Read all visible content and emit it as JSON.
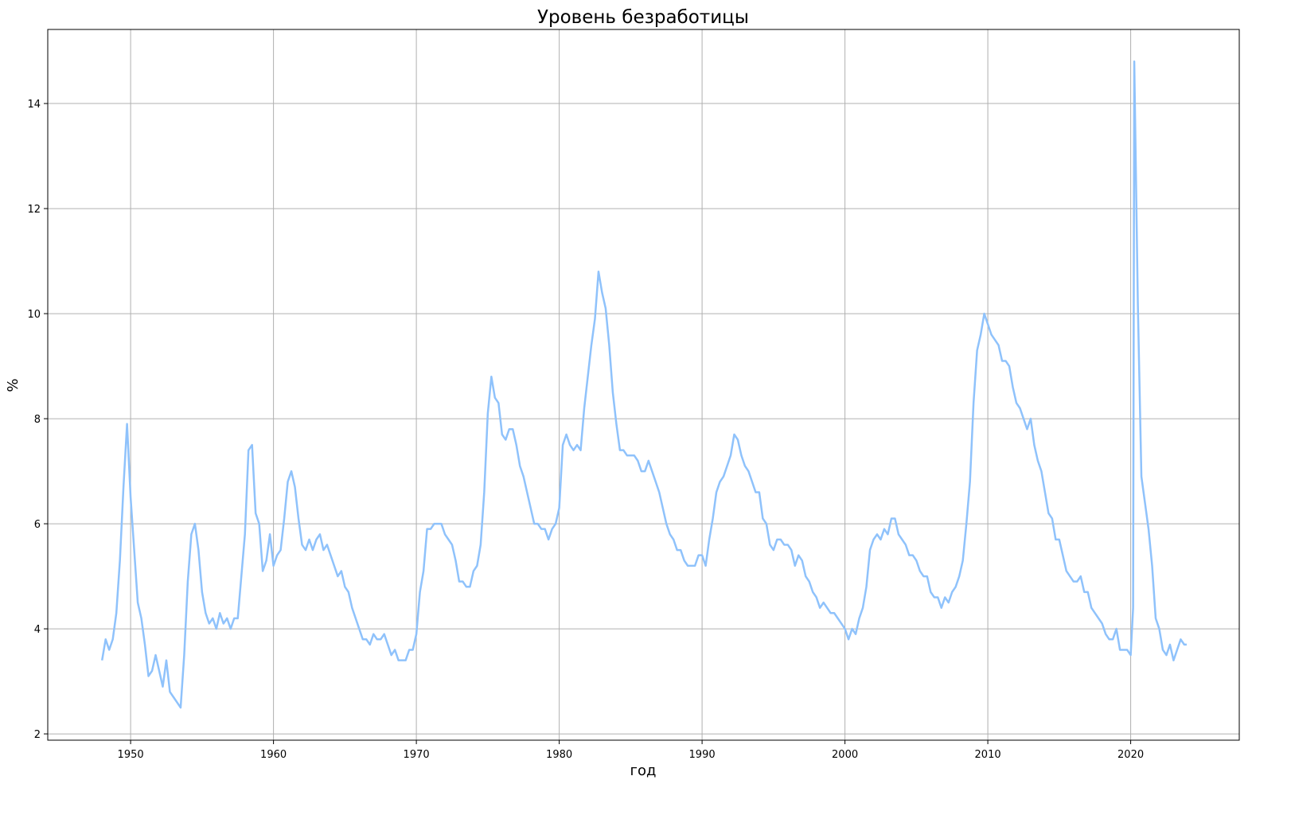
{
  "chart_data": {
    "type": "line",
    "title": "Уровень безработицы",
    "xlabel": "год",
    "ylabel": "%",
    "x": [
      1948,
      1948.25,
      1948.5,
      1948.75,
      1949,
      1949.25,
      1949.5,
      1949.75,
      1950,
      1950.25,
      1950.5,
      1950.75,
      1951,
      1951.25,
      1951.5,
      1951.75,
      1952,
      1952.25,
      1952.5,
      1952.75,
      1953,
      1953.25,
      1953.5,
      1953.75,
      1954,
      1954.25,
      1954.5,
      1954.75,
      1955,
      1955.25,
      1955.5,
      1955.75,
      1956,
      1956.25,
      1956.5,
      1956.75,
      1957,
      1957.25,
      1957.5,
      1957.75,
      1958,
      1958.25,
      1958.5,
      1958.75,
      1959,
      1959.25,
      1959.5,
      1959.75,
      1960,
      1960.25,
      1960.5,
      1960.75,
      1961,
      1961.25,
      1961.5,
      1961.75,
      1962,
      1962.25,
      1962.5,
      1962.75,
      1963,
      1963.25,
      1963.5,
      1963.75,
      1964,
      1964.25,
      1964.5,
      1964.75,
      1965,
      1965.25,
      1965.5,
      1965.75,
      1966,
      1966.25,
      1966.5,
      1966.75,
      1967,
      1967.25,
      1967.5,
      1967.75,
      1968,
      1968.25,
      1968.5,
      1968.75,
      1969,
      1969.25,
      1969.5,
      1969.75,
      1970,
      1970.25,
      1970.5,
      1970.75,
      1971,
      1971.25,
      1971.5,
      1971.75,
      1972,
      1972.25,
      1972.5,
      1972.75,
      1973,
      1973.25,
      1973.5,
      1973.75,
      1974,
      1974.25,
      1974.5,
      1974.75,
      1975,
      1975.25,
      1975.5,
      1975.75,
      1976,
      1976.25,
      1976.5,
      1976.75,
      1977,
      1977.25,
      1977.5,
      1977.75,
      1978,
      1978.25,
      1978.5,
      1978.75,
      1979,
      1979.25,
      1979.5,
      1979.75,
      1980,
      1980.25,
      1980.5,
      1980.75,
      1981,
      1981.25,
      1981.5,
      1981.75,
      1982,
      1982.25,
      1982.5,
      1982.75,
      1983,
      1983.25,
      1983.5,
      1983.75,
      1984,
      1984.25,
      1984.5,
      1984.75,
      1985,
      1985.25,
      1985.5,
      1985.75,
      1986,
      1986.25,
      1986.5,
      1986.75,
      1987,
      1987.25,
      1987.5,
      1987.75,
      1988,
      1988.25,
      1988.5,
      1988.75,
      1989,
      1989.25,
      1989.5,
      1989.75,
      1990,
      1990.25,
      1990.5,
      1990.75,
      1991,
      1991.25,
      1991.5,
      1991.75,
      1992,
      1992.25,
      1992.5,
      1992.75,
      1993,
      1993.25,
      1993.5,
      1993.75,
      1994,
      1994.25,
      1994.5,
      1994.75,
      1995,
      1995.25,
      1995.5,
      1995.75,
      1996,
      1996.25,
      1996.5,
      1996.75,
      1997,
      1997.25,
      1997.5,
      1997.75,
      1998,
      1998.25,
      1998.5,
      1998.75,
      1999,
      1999.25,
      1999.5,
      1999.75,
      2000,
      2000.25,
      2000.5,
      2000.75,
      2001,
      2001.25,
      2001.5,
      2001.75,
      2002,
      2002.25,
      2002.5,
      2002.75,
      2003,
      2003.25,
      2003.5,
      2003.75,
      2004,
      2004.25,
      2004.5,
      2004.75,
      2005,
      2005.25,
      2005.5,
      2005.75,
      2006,
      2006.25,
      2006.5,
      2006.75,
      2007,
      2007.25,
      2007.5,
      2007.75,
      2008,
      2008.25,
      2008.5,
      2008.75,
      2009,
      2009.25,
      2009.5,
      2009.75,
      2010,
      2010.25,
      2010.5,
      2010.75,
      2011,
      2011.25,
      2011.5,
      2011.75,
      2012,
      2012.25,
      2012.5,
      2012.75,
      2013,
      2013.25,
      2013.5,
      2013.75,
      2014,
      2014.25,
      2014.5,
      2014.75,
      2015,
      2015.25,
      2015.5,
      2015.75,
      2016,
      2016.25,
      2016.5,
      2016.75,
      2017,
      2017.25,
      2017.5,
      2017.75,
      2018,
      2018.25,
      2018.5,
      2018.75,
      2019,
      2019.25,
      2019.5,
      2019.75,
      2020,
      2020.17,
      2020.25,
      2020.5,
      2020.75,
      2021,
      2021.25,
      2021.5,
      2021.75,
      2022,
      2022.25,
      2022.5,
      2022.75,
      2023,
      2023.25,
      2023.5,
      2023.75,
      2023.92
    ],
    "series": [
      {
        "name": "Уровень безработицы",
        "color": "#8fc2fb",
        "values": [
          3.4,
          3.8,
          3.6,
          3.8,
          4.3,
          5.3,
          6.7,
          7.9,
          6.5,
          5.5,
          4.5,
          4.2,
          3.7,
          3.1,
          3.2,
          3.5,
          3.2,
          2.9,
          3.4,
          2.8,
          2.7,
          2.6,
          2.5,
          3.5,
          4.9,
          5.8,
          6.0,
          5.5,
          4.7,
          4.3,
          4.1,
          4.2,
          4.0,
          4.3,
          4.1,
          4.2,
          4.0,
          4.2,
          4.2,
          5.0,
          5.8,
          7.4,
          7.5,
          6.2,
          6.0,
          5.1,
          5.3,
          5.8,
          5.2,
          5.4,
          5.5,
          6.1,
          6.8,
          7.0,
          6.7,
          6.1,
          5.6,
          5.5,
          5.7,
          5.5,
          5.7,
          5.8,
          5.5,
          5.6,
          5.4,
          5.2,
          5.0,
          5.1,
          4.8,
          4.7,
          4.4,
          4.2,
          4.0,
          3.8,
          3.8,
          3.7,
          3.9,
          3.8,
          3.8,
          3.9,
          3.7,
          3.5,
          3.6,
          3.4,
          3.4,
          3.4,
          3.6,
          3.6,
          3.9,
          4.7,
          5.1,
          5.9,
          5.9,
          6.0,
          6.0,
          6.0,
          5.8,
          5.7,
          5.6,
          5.3,
          4.9,
          4.9,
          4.8,
          4.8,
          5.1,
          5.2,
          5.6,
          6.6,
          8.1,
          8.8,
          8.4,
          8.3,
          7.7,
          7.6,
          7.8,
          7.8,
          7.5,
          7.1,
          6.9,
          6.6,
          6.3,
          6.0,
          6.0,
          5.9,
          5.9,
          5.7,
          5.9,
          6.0,
          6.3,
          7.5,
          7.7,
          7.5,
          7.4,
          7.5,
          7.4,
          8.2,
          8.8,
          9.4,
          9.9,
          10.8,
          10.4,
          10.1,
          9.4,
          8.5,
          7.9,
          7.4,
          7.4,
          7.3,
          7.3,
          7.3,
          7.2,
          7.0,
          7.0,
          7.2,
          7.0,
          6.8,
          6.6,
          6.3,
          6.0,
          5.8,
          5.7,
          5.5,
          5.5,
          5.3,
          5.2,
          5.2,
          5.2,
          5.4,
          5.4,
          5.2,
          5.7,
          6.1,
          6.6,
          6.8,
          6.9,
          7.1,
          7.3,
          7.7,
          7.6,
          7.3,
          7.1,
          7.0,
          6.8,
          6.6,
          6.6,
          6.1,
          6.0,
          5.6,
          5.5,
          5.7,
          5.7,
          5.6,
          5.6,
          5.5,
          5.2,
          5.4,
          5.3,
          5.0,
          4.9,
          4.7,
          4.6,
          4.4,
          4.5,
          4.4,
          4.3,
          4.3,
          4.2,
          4.1,
          4.0,
          3.8,
          4.0,
          3.9,
          4.2,
          4.4,
          4.8,
          5.5,
          5.7,
          5.8,
          5.7,
          5.9,
          5.8,
          6.1,
          6.1,
          5.8,
          5.7,
          5.6,
          5.4,
          5.4,
          5.3,
          5.1,
          5.0,
          5.0,
          4.7,
          4.6,
          4.6,
          4.4,
          4.6,
          4.5,
          4.7,
          4.8,
          5.0,
          5.3,
          6.0,
          6.8,
          8.3,
          9.3,
          9.6,
          10.0,
          9.8,
          9.6,
          9.5,
          9.4,
          9.1,
          9.1,
          9.0,
          8.6,
          8.3,
          8.2,
          8.0,
          7.8,
          8.0,
          7.5,
          7.2,
          7.0,
          6.6,
          6.2,
          6.1,
          5.7,
          5.7,
          5.4,
          5.1,
          5.0,
          4.9,
          4.9,
          5.0,
          4.7,
          4.7,
          4.4,
          4.3,
          4.2,
          4.1,
          3.9,
          3.8,
          3.8,
          4.0,
          3.6,
          3.6,
          3.6,
          3.5,
          4.4,
          14.8,
          10.2,
          6.9,
          6.4,
          5.9,
          5.2,
          4.2,
          4.0,
          3.6,
          3.5,
          3.7,
          3.4,
          3.6,
          3.8,
          3.7,
          3.7
        ]
      }
    ],
    "xlim": [
      1944.2,
      2027.6
    ],
    "ylim": [
      1.88,
      15.41
    ],
    "xticks": [
      1950,
      1960,
      1970,
      1980,
      1990,
      2000,
      2010,
      2020
    ],
    "yticks": [
      2,
      4,
      6,
      8,
      10,
      12,
      14
    ],
    "grid": true
  }
}
